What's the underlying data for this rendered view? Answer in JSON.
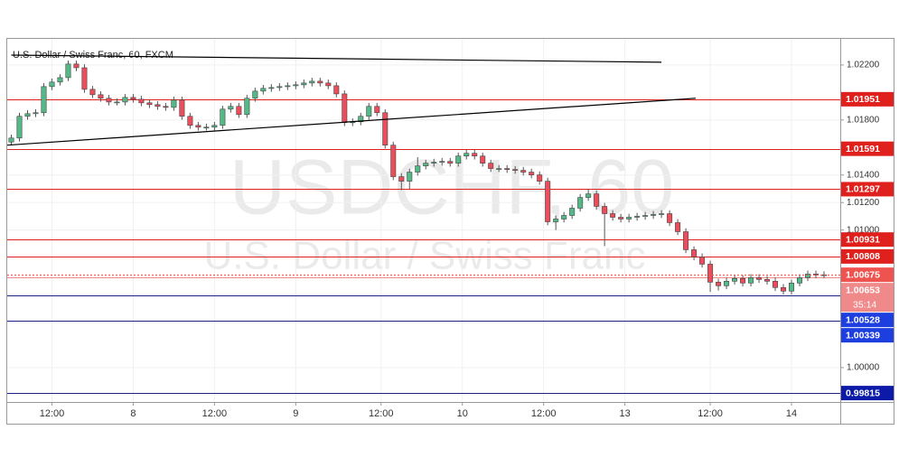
{
  "chart_data": {
    "type": "candlestick",
    "title": "U.S. Dollar / Swiss Franc, 60, FXCM",
    "watermark": "USDCHF, 60",
    "watermark_subtitle": "U.S. Dollar / Swiss Franc",
    "up_color": "#53b987",
    "down_color": "#eb4d5c",
    "last_color": "#ef5350",
    "grid": true,
    "xlim": [
      -0.5,
      102
    ],
    "ylim": [
      0.9975,
      1.0239
    ],
    "yticks": [
      {
        "value": 1.022,
        "label": "1.02200"
      },
      {
        "value": 1.018,
        "label": "1.01800"
      },
      {
        "value": 1.014,
        "label": "1.01400"
      },
      {
        "value": 1.012,
        "label": "1.01200"
      },
      {
        "value": 1.01,
        "label": "1.01000"
      },
      {
        "value": 1.0,
        "label": "1.00000"
      }
    ],
    "xticks": [
      {
        "value": 5,
        "label": "12:00"
      },
      {
        "value": 15,
        "label": "8"
      },
      {
        "value": 25,
        "label": "12:00"
      },
      {
        "value": 35,
        "label": "9"
      },
      {
        "value": 45.5,
        "label": "12:00"
      },
      {
        "value": 55.5,
        "label": "10"
      },
      {
        "value": 65.5,
        "label": "12:00"
      },
      {
        "value": 75.5,
        "label": "13"
      },
      {
        "value": 86,
        "label": "12:00"
      },
      {
        "value": 96,
        "label": "14"
      }
    ],
    "open": [
      1.0164,
      1.01669,
      1.01827,
      1.01846,
      1.01853,
      1.02043,
      1.02076,
      1.02108,
      1.02207,
      1.0218,
      1.02023,
      1.01984,
      1.01958,
      1.01931,
      1.01931,
      1.01964,
      1.01951,
      1.01925,
      1.01912,
      1.01899,
      1.01892,
      1.01945,
      1.01827,
      1.01761,
      1.01748,
      1.01748,
      1.01761,
      1.01879,
      1.01899,
      1.0184,
      1.01958,
      1.0201,
      1.0203,
      1.02036,
      1.02043,
      1.02049,
      1.02056,
      1.02069,
      1.02082,
      1.02069,
      1.02049,
      1.0199,
      1.01781,
      1.01787,
      1.01827,
      1.01899,
      1.01853,
      1.01617,
      1.01388,
      1.01355,
      1.01421,
      1.01466,
      1.01486,
      1.01493,
      1.01499,
      1.01486,
      1.01538,
      1.01558,
      1.01538,
      1.01486,
      1.01447,
      1.01447,
      1.0144,
      1.01434,
      1.01421,
      1.01401,
      1.01355,
      1.0106,
      1.0108,
      1.01106,
      1.01159,
      1.01237,
      1.01263,
      1.01172,
      1.01119,
      1.01093,
      1.0108,
      1.01093,
      1.011,
      1.01106,
      1.01113,
      1.01119,
      1.01054,
      1.00988,
      1.00857,
      1.00805,
      1.00752,
      1.00621,
      1.00595,
      1.00628,
      1.00648,
      1.00615,
      1.00654,
      1.00641,
      1.00628,
      1.00582,
      1.00556,
      1.00615,
      1.00654,
      1.0068,
      1.00674
    ],
    "high": [
      1.01694,
      1.01852,
      1.01871,
      1.01878,
      1.02068,
      1.02101,
      1.02133,
      1.02232,
      1.02232,
      1.02205,
      1.02048,
      1.02009,
      1.01983,
      1.01956,
      1.01989,
      1.01989,
      1.01976,
      1.0195,
      1.01937,
      1.01924,
      1.0197,
      1.0197,
      1.01852,
      1.01786,
      1.01773,
      1.01786,
      1.01904,
      1.01924,
      1.01924,
      1.01983,
      1.02035,
      1.02055,
      1.02061,
      1.02068,
      1.02074,
      1.02081,
      1.02094,
      1.02107,
      1.02107,
      1.02094,
      1.02074,
      1.02015,
      1.01812,
      1.01852,
      1.01924,
      1.01924,
      1.01878,
      1.01642,
      1.01413,
      1.01446,
      1.0153,
      1.01511,
      1.01518,
      1.01524,
      1.01524,
      1.01563,
      1.01583,
      1.01583,
      1.01563,
      1.01511,
      1.01472,
      1.01472,
      1.01465,
      1.01459,
      1.01446,
      1.01426,
      1.0138,
      1.01105,
      1.01131,
      1.01184,
      1.01262,
      1.013,
      1.01288,
      1.01197,
      1.01144,
      1.01118,
      1.01118,
      1.01125,
      1.01131,
      1.01138,
      1.01144,
      1.01144,
      1.01079,
      1.01013,
      1.00882,
      1.0083,
      1.00777,
      1.00646,
      1.00653,
      1.00673,
      1.00673,
      1.00679,
      1.00679,
      1.00666,
      1.00653,
      1.00607,
      1.0064,
      1.00679,
      1.00705,
      1.00705,
      1.007
    ],
    "low": [
      1.01615,
      1.01644,
      1.01802,
      1.01821,
      1.01828,
      1.02018,
      1.02051,
      1.02083,
      1.02155,
      1.01998,
      1.01959,
      1.01933,
      1.01906,
      1.01906,
      1.01906,
      1.01926,
      1.019,
      1.01887,
      1.01874,
      1.01867,
      1.01867,
      1.01802,
      1.01736,
      1.01723,
      1.01723,
      1.01723,
      1.01736,
      1.01854,
      1.01815,
      1.01815,
      1.01933,
      1.01985,
      1.02005,
      1.02011,
      1.02018,
      1.02024,
      1.02031,
      1.02044,
      1.02044,
      1.02024,
      1.01965,
      1.01756,
      1.01756,
      1.01762,
      1.01802,
      1.01828,
      1.01592,
      1.01363,
      1.0129,
      1.013,
      1.01396,
      1.01441,
      1.01461,
      1.01468,
      1.01461,
      1.01461,
      1.01513,
      1.01513,
      1.01461,
      1.01422,
      1.01422,
      1.01415,
      1.01409,
      1.01396,
      1.01376,
      1.0133,
      1.01035,
      1.01,
      1.01055,
      1.01081,
      1.01134,
      1.01212,
      1.01147,
      1.00883,
      1.01068,
      1.01055,
      1.01055,
      1.01068,
      1.01075,
      1.01081,
      1.01088,
      1.01029,
      1.00963,
      1.00832,
      1.0078,
      1.00727,
      1.0055,
      1.0056,
      1.0057,
      1.00603,
      1.0059,
      1.0059,
      1.00616,
      1.00603,
      1.00557,
      1.00531,
      1.00531,
      1.0059,
      1.00629,
      1.00649,
      1.00649
    ],
    "close": [
      1.01669,
      1.01827,
      1.01846,
      1.01853,
      1.02043,
      1.02076,
      1.02108,
      1.02207,
      1.0218,
      1.02023,
      1.01984,
      1.01958,
      1.01931,
      1.01931,
      1.01964,
      1.01951,
      1.01925,
      1.01912,
      1.01899,
      1.01892,
      1.01945,
      1.01827,
      1.01761,
      1.01748,
      1.01748,
      1.01761,
      1.01879,
      1.01899,
      1.0184,
      1.01958,
      1.0201,
      1.0203,
      1.02036,
      1.02043,
      1.02049,
      1.02056,
      1.02069,
      1.02082,
      1.02069,
      1.02049,
      1.0199,
      1.01781,
      1.01787,
      1.01827,
      1.01899,
      1.01853,
      1.01617,
      1.01388,
      1.01355,
      1.01421,
      1.01466,
      1.01486,
      1.01493,
      1.01499,
      1.01486,
      1.01538,
      1.01558,
      1.01538,
      1.01486,
      1.01447,
      1.01447,
      1.0144,
      1.01434,
      1.01421,
      1.01401,
      1.01355,
      1.0106,
      1.0108,
      1.01106,
      1.01159,
      1.01237,
      1.01263,
      1.01172,
      1.01119,
      1.01093,
      1.0108,
      1.01093,
      1.011,
      1.01106,
      1.01113,
      1.01119,
      1.01054,
      1.00988,
      1.00857,
      1.00805,
      1.00752,
      1.00621,
      1.00595,
      1.00628,
      1.00648,
      1.00615,
      1.00654,
      1.00641,
      1.00628,
      1.00582,
      1.00556,
      1.00615,
      1.00654,
      1.0068,
      1.00674,
      1.00675
    ],
    "trend_lines": [
      {
        "color": "#000000",
        "x": [
          -0.5,
          84.2
        ],
        "y": [
          1.01617,
          1.01958
        ]
      },
      {
        "color": "#000000",
        "x": [
          0,
          80
        ],
        "y": [
          1.02272,
          1.0222
        ]
      }
    ],
    "levels": [
      {
        "value": 1.01951,
        "color": "#e0201c"
      },
      {
        "value": 1.01591,
        "color": "#e0201c"
      },
      {
        "value": 1.01297,
        "color": "#e0201c"
      },
      {
        "value": 1.00931,
        "color": "#e0201c"
      },
      {
        "value": 1.00808,
        "color": "#e0201c"
      },
      {
        "value": 1.00653,
        "color": "#f08a8a",
        "countdown": "35:14"
      },
      {
        "value": 1.00528,
        "color": "#1a237e",
        "label_color": "#1e3fe0"
      },
      {
        "value": 1.00339,
        "color": "#1a237e",
        "label_color": "#1e3fe0"
      },
      {
        "value": 0.99815,
        "color": "#1a237e",
        "label_color": "#0d1aa8"
      }
    ]
  }
}
